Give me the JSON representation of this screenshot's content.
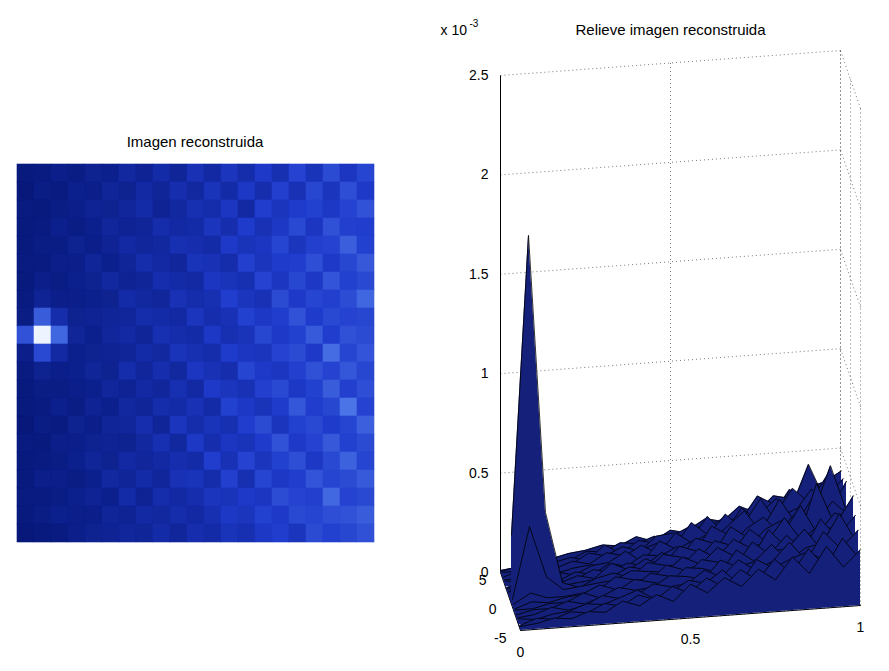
{
  "chart_data": [
    {
      "type": "heatmap",
      "title": "Imagen reconstruida",
      "tick_labels": false,
      "x": [
        0,
        0.05,
        0.1,
        0.15,
        0.2,
        0.25,
        0.3,
        0.35,
        0.4,
        0.45,
        0.5,
        0.55,
        0.6,
        0.65,
        0.7,
        0.75,
        0.8,
        0.85,
        0.9,
        0.95,
        1
      ],
      "y": [
        -5,
        -4.5,
        -4,
        -3.5,
        -3,
        -2.5,
        -2,
        -1.5,
        -1,
        -0.5,
        0,
        0.5,
        1,
        1.5,
        2,
        2.5,
        3,
        3.5,
        4,
        4.5,
        5
      ],
      "z": [
        [
          0.02,
          0.03,
          0.05,
          0.04,
          0.07,
          0.06,
          0.11,
          0.08,
          0.13,
          0.09,
          0.17,
          0.12,
          0.19,
          0.14,
          0.22,
          0.16,
          0.27,
          0.18,
          0.31,
          0.2,
          0.28
        ],
        [
          0.01,
          0.04,
          0.03,
          0.06,
          0.05,
          0.09,
          0.07,
          0.12,
          0.09,
          0.15,
          0.11,
          0.18,
          0.13,
          0.21,
          0.15,
          0.25,
          0.17,
          0.29,
          0.19,
          0.33,
          0.22
        ],
        [
          0.03,
          0.02,
          0.04,
          0.05,
          0.08,
          0.07,
          0.1,
          0.13,
          0.08,
          0.11,
          0.16,
          0.14,
          0.2,
          0.12,
          0.24,
          0.19,
          0.23,
          0.26,
          0.21,
          0.27,
          0.35
        ],
        [
          0.02,
          0.03,
          0.06,
          0.04,
          0.06,
          0.1,
          0.08,
          0.09,
          0.14,
          0.12,
          0.13,
          0.19,
          0.15,
          0.23,
          0.17,
          0.21,
          0.3,
          0.2,
          0.34,
          0.25,
          0.24
        ],
        [
          0.02,
          0.04,
          0.04,
          0.07,
          0.05,
          0.08,
          0.12,
          0.1,
          0.11,
          0.16,
          0.15,
          0.13,
          0.22,
          0.18,
          0.2,
          0.28,
          0.19,
          0.25,
          0.27,
          0.41,
          0.26
        ],
        [
          0.03,
          0.03,
          0.05,
          0.05,
          0.09,
          0.06,
          0.09,
          0.14,
          0.12,
          0.1,
          0.18,
          0.17,
          0.14,
          0.25,
          0.19,
          0.23,
          0.24,
          0.33,
          0.22,
          0.29,
          0.38
        ],
        [
          0.02,
          0.05,
          0.04,
          0.06,
          0.07,
          0.11,
          0.08,
          0.09,
          0.15,
          0.13,
          0.12,
          0.2,
          0.18,
          0.16,
          0.27,
          0.2,
          0.29,
          0.21,
          0.36,
          0.26,
          0.3
        ],
        [
          0.03,
          0.08,
          0.05,
          0.05,
          0.06,
          0.07,
          0.13,
          0.11,
          0.1,
          0.17,
          0.14,
          0.16,
          0.24,
          0.19,
          0.17,
          0.31,
          0.22,
          0.28,
          0.25,
          0.32,
          0.45
        ],
        [
          0.04,
          0.4,
          0.14,
          0.07,
          0.08,
          0.09,
          0.1,
          0.14,
          0.13,
          0.12,
          0.19,
          0.15,
          0.17,
          0.26,
          0.21,
          0.24,
          0.35,
          0.23,
          0.3,
          0.27,
          0.29
        ],
        [
          0.35,
          1.85,
          0.45,
          0.09,
          0.06,
          0.1,
          0.12,
          0.09,
          0.16,
          0.14,
          0.13,
          0.21,
          0.16,
          0.18,
          0.29,
          0.22,
          0.26,
          0.39,
          0.24,
          0.34,
          0.31
        ],
        [
          0.05,
          0.3,
          0.12,
          0.06,
          0.07,
          0.08,
          0.09,
          0.13,
          0.11,
          0.18,
          0.16,
          0.14,
          0.23,
          0.2,
          0.19,
          0.27,
          0.31,
          0.22,
          0.48,
          0.28,
          0.36
        ],
        [
          0.03,
          0.07,
          0.05,
          0.06,
          0.09,
          0.07,
          0.14,
          0.1,
          0.15,
          0.11,
          0.2,
          0.17,
          0.15,
          0.28,
          0.22,
          0.2,
          0.25,
          0.34,
          0.27,
          0.37,
          0.29
        ],
        [
          0.02,
          0.04,
          0.04,
          0.05,
          0.06,
          0.1,
          0.08,
          0.12,
          0.1,
          0.16,
          0.12,
          0.22,
          0.19,
          0.17,
          0.25,
          0.3,
          0.21,
          0.26,
          0.4,
          0.25,
          0.33
        ],
        [
          0.02,
          0.03,
          0.06,
          0.04,
          0.08,
          0.06,
          0.11,
          0.09,
          0.14,
          0.13,
          0.17,
          0.13,
          0.26,
          0.21,
          0.18,
          0.23,
          0.37,
          0.24,
          0.29,
          0.52,
          0.27
        ],
        [
          0.01,
          0.04,
          0.03,
          0.07,
          0.05,
          0.09,
          0.1,
          0.15,
          0.09,
          0.19,
          0.14,
          0.18,
          0.16,
          0.24,
          0.31,
          0.19,
          0.26,
          0.3,
          0.23,
          0.28,
          0.42
        ],
        [
          0.03,
          0.02,
          0.05,
          0.05,
          0.07,
          0.08,
          0.07,
          0.11,
          0.16,
          0.11,
          0.21,
          0.15,
          0.2,
          0.18,
          0.23,
          0.35,
          0.22,
          0.27,
          0.38,
          0.26,
          0.31
        ],
        [
          0.02,
          0.03,
          0.04,
          0.06,
          0.09,
          0.07,
          0.12,
          0.1,
          0.12,
          0.15,
          0.13,
          0.24,
          0.17,
          0.27,
          0.19,
          0.26,
          0.33,
          0.21,
          0.3,
          0.43,
          0.28
        ],
        [
          0.02,
          0.05,
          0.05,
          0.04,
          0.06,
          0.11,
          0.09,
          0.13,
          0.1,
          0.17,
          0.18,
          0.14,
          0.25,
          0.16,
          0.28,
          0.21,
          0.24,
          0.36,
          0.28,
          0.31,
          0.39
        ],
        [
          0.03,
          0.03,
          0.04,
          0.06,
          0.08,
          0.06,
          0.13,
          0.08,
          0.14,
          0.12,
          0.15,
          0.19,
          0.18,
          0.22,
          0.2,
          0.32,
          0.27,
          0.25,
          0.46,
          0.27,
          0.3
        ],
        [
          0.02,
          0.04,
          0.06,
          0.05,
          0.05,
          0.09,
          0.08,
          0.12,
          0.11,
          0.14,
          0.12,
          0.16,
          0.21,
          0.19,
          0.26,
          0.22,
          0.3,
          0.28,
          0.33,
          0.35,
          0.4
        ],
        [
          0.01,
          0.02,
          0.03,
          0.05,
          0.07,
          0.08,
          0.1,
          0.09,
          0.13,
          0.1,
          0.15,
          0.13,
          0.18,
          0.16,
          0.21,
          0.24,
          0.19,
          0.31,
          0.26,
          0.29,
          0.34
        ]
      ]
    },
    {
      "type": "surface",
      "title": "Relieve imagen reconstruida",
      "grid": true,
      "zfactor": {
        "base": "x 10",
        "exponent": "-3"
      },
      "xlim": [
        0,
        1
      ],
      "xticks": [
        0,
        0.5,
        1
      ],
      "ylim": [
        -5,
        5
      ],
      "yticks": [
        -5,
        0,
        5
      ],
      "zlim": [
        0,
        2.5
      ],
      "zticks": [
        0,
        0.5,
        1,
        1.5,
        2,
        2.5
      ],
      "x": [
        0,
        0.05,
        0.1,
        0.15,
        0.2,
        0.25,
        0.3,
        0.35,
        0.4,
        0.45,
        0.5,
        0.55,
        0.6,
        0.65,
        0.7,
        0.75,
        0.8,
        0.85,
        0.9,
        0.95,
        1
      ],
      "y": [
        -5,
        -4.5,
        -4,
        -3.5,
        -3,
        -2.5,
        -2,
        -1.5,
        -1,
        -0.5,
        0,
        0.5,
        1,
        1.5,
        2,
        2.5,
        3,
        3.5,
        4,
        4.5,
        5
      ],
      "z": [
        [
          0.02,
          0.03,
          0.05,
          0.04,
          0.07,
          0.06,
          0.11,
          0.08,
          0.13,
          0.09,
          0.17,
          0.12,
          0.19,
          0.14,
          0.22,
          0.16,
          0.27,
          0.18,
          0.31,
          0.2,
          0.28
        ],
        [
          0.01,
          0.04,
          0.03,
          0.06,
          0.05,
          0.09,
          0.07,
          0.12,
          0.09,
          0.15,
          0.11,
          0.18,
          0.13,
          0.21,
          0.15,
          0.25,
          0.17,
          0.29,
          0.19,
          0.33,
          0.22
        ],
        [
          0.03,
          0.02,
          0.04,
          0.05,
          0.08,
          0.07,
          0.1,
          0.13,
          0.08,
          0.11,
          0.16,
          0.14,
          0.2,
          0.12,
          0.24,
          0.19,
          0.23,
          0.26,
          0.21,
          0.27,
          0.35
        ],
        [
          0.02,
          0.03,
          0.06,
          0.04,
          0.06,
          0.1,
          0.08,
          0.09,
          0.14,
          0.12,
          0.13,
          0.19,
          0.15,
          0.23,
          0.17,
          0.21,
          0.3,
          0.2,
          0.34,
          0.25,
          0.24
        ],
        [
          0.02,
          0.04,
          0.04,
          0.07,
          0.05,
          0.08,
          0.12,
          0.1,
          0.11,
          0.16,
          0.15,
          0.13,
          0.22,
          0.18,
          0.2,
          0.28,
          0.19,
          0.25,
          0.27,
          0.41,
          0.26
        ],
        [
          0.03,
          0.03,
          0.05,
          0.05,
          0.09,
          0.06,
          0.09,
          0.14,
          0.12,
          0.1,
          0.18,
          0.17,
          0.14,
          0.25,
          0.19,
          0.23,
          0.24,
          0.33,
          0.22,
          0.29,
          0.38
        ],
        [
          0.02,
          0.05,
          0.04,
          0.06,
          0.07,
          0.11,
          0.08,
          0.09,
          0.15,
          0.13,
          0.12,
          0.2,
          0.18,
          0.16,
          0.27,
          0.2,
          0.29,
          0.21,
          0.36,
          0.26,
          0.3
        ],
        [
          0.03,
          0.08,
          0.05,
          0.05,
          0.06,
          0.07,
          0.13,
          0.11,
          0.1,
          0.17,
          0.14,
          0.16,
          0.24,
          0.19,
          0.17,
          0.31,
          0.22,
          0.28,
          0.25,
          0.32,
          0.45
        ],
        [
          0.04,
          0.4,
          0.14,
          0.07,
          0.08,
          0.09,
          0.1,
          0.14,
          0.13,
          0.12,
          0.19,
          0.15,
          0.17,
          0.26,
          0.21,
          0.24,
          0.35,
          0.23,
          0.3,
          0.27,
          0.29
        ],
        [
          0.35,
          1.85,
          0.45,
          0.09,
          0.06,
          0.1,
          0.12,
          0.09,
          0.16,
          0.14,
          0.13,
          0.21,
          0.16,
          0.18,
          0.29,
          0.22,
          0.26,
          0.39,
          0.24,
          0.34,
          0.31
        ],
        [
          0.05,
          0.3,
          0.12,
          0.06,
          0.07,
          0.08,
          0.09,
          0.13,
          0.11,
          0.18,
          0.16,
          0.14,
          0.23,
          0.2,
          0.19,
          0.27,
          0.31,
          0.22,
          0.48,
          0.28,
          0.36
        ],
        [
          0.03,
          0.07,
          0.05,
          0.06,
          0.09,
          0.07,
          0.14,
          0.1,
          0.15,
          0.11,
          0.2,
          0.17,
          0.15,
          0.28,
          0.22,
          0.2,
          0.25,
          0.34,
          0.27,
          0.37,
          0.29
        ],
        [
          0.02,
          0.04,
          0.04,
          0.05,
          0.06,
          0.1,
          0.08,
          0.12,
          0.1,
          0.16,
          0.12,
          0.22,
          0.19,
          0.17,
          0.25,
          0.3,
          0.21,
          0.26,
          0.4,
          0.25,
          0.33
        ],
        [
          0.02,
          0.03,
          0.06,
          0.04,
          0.08,
          0.06,
          0.11,
          0.09,
          0.14,
          0.13,
          0.17,
          0.13,
          0.26,
          0.21,
          0.18,
          0.23,
          0.37,
          0.24,
          0.29,
          0.52,
          0.27
        ],
        [
          0.01,
          0.04,
          0.03,
          0.07,
          0.05,
          0.09,
          0.1,
          0.15,
          0.09,
          0.19,
          0.14,
          0.18,
          0.16,
          0.24,
          0.31,
          0.19,
          0.26,
          0.3,
          0.23,
          0.28,
          0.42
        ],
        [
          0.03,
          0.02,
          0.05,
          0.05,
          0.07,
          0.08,
          0.07,
          0.11,
          0.16,
          0.11,
          0.21,
          0.15,
          0.2,
          0.18,
          0.23,
          0.35,
          0.22,
          0.27,
          0.38,
          0.26,
          0.31
        ],
        [
          0.02,
          0.03,
          0.04,
          0.06,
          0.09,
          0.07,
          0.12,
          0.1,
          0.12,
          0.15,
          0.13,
          0.24,
          0.17,
          0.27,
          0.19,
          0.26,
          0.33,
          0.21,
          0.3,
          0.43,
          0.28
        ],
        [
          0.02,
          0.05,
          0.05,
          0.04,
          0.06,
          0.11,
          0.09,
          0.13,
          0.1,
          0.17,
          0.18,
          0.14,
          0.25,
          0.16,
          0.28,
          0.21,
          0.24,
          0.36,
          0.28,
          0.31,
          0.39
        ],
        [
          0.03,
          0.03,
          0.04,
          0.06,
          0.08,
          0.06,
          0.13,
          0.08,
          0.14,
          0.12,
          0.15,
          0.19,
          0.18,
          0.22,
          0.2,
          0.32,
          0.27,
          0.25,
          0.46,
          0.27,
          0.3
        ],
        [
          0.02,
          0.04,
          0.06,
          0.05,
          0.05,
          0.09,
          0.08,
          0.12,
          0.11,
          0.14,
          0.12,
          0.16,
          0.21,
          0.19,
          0.26,
          0.22,
          0.3,
          0.28,
          0.33,
          0.35,
          0.4
        ],
        [
          0.01,
          0.02,
          0.03,
          0.05,
          0.07,
          0.08,
          0.1,
          0.09,
          0.13,
          0.1,
          0.15,
          0.13,
          0.18,
          0.16,
          0.21,
          0.24,
          0.19,
          0.31,
          0.26,
          0.29,
          0.34
        ]
      ]
    }
  ]
}
